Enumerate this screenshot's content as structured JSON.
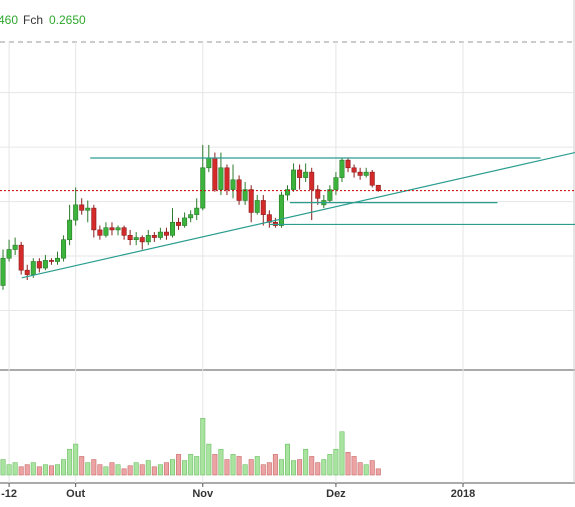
{
  "header": {
    "fragment": "460",
    "label": "Fch",
    "value": "0.2650"
  },
  "chart_data": {
    "type": "candlestick",
    "xlim": [
      -0.5,
      94.5
    ],
    "xticks": [
      {
        "value": 1,
        "label": "-12"
      },
      {
        "value": 12,
        "label": "Out"
      },
      {
        "value": 33,
        "label": "Nov"
      },
      {
        "value": 55,
        "label": "Dez"
      },
      {
        "value": 76,
        "label": "2018"
      }
    ],
    "ylim": [
      0.249,
      0.2825
    ],
    "yticks": [
      0.254,
      0.259,
      0.264,
      0.269,
      0.274
    ],
    "up_color": "#3cb43c",
    "down_color": "#d42a2a",
    "open": [
      0.2563,
      0.2588,
      0.2596,
      0.26,
      0.2577,
      0.2573,
      0.2585,
      0.2579,
      0.2586,
      0.2585,
      0.2588,
      0.2605,
      0.2623,
      0.2637,
      0.2632,
      0.2634,
      0.2614,
      0.2609,
      0.2616,
      0.2614,
      0.2616,
      0.2609,
      0.2605,
      0.2607,
      0.2603,
      0.2609,
      0.2607,
      0.2612,
      0.2609,
      0.2621,
      0.2618,
      0.2625,
      0.2628,
      0.2634,
      0.2671,
      0.268,
      0.2651,
      0.2671,
      0.2651,
      0.266,
      0.2641,
      0.2651,
      0.263,
      0.2641,
      0.2628,
      0.2621,
      0.2618,
      0.2646,
      0.2651,
      0.2669,
      0.2662,
      0.2667,
      0.2651,
      0.2637,
      0.2641,
      0.2651,
      0.2662,
      0.2678,
      0.2671,
      0.2667,
      0.2664,
      0.2667,
      0.2655
    ],
    "high": [
      0.2596,
      0.2605,
      0.2607,
      0.2603,
      0.2582,
      0.2588,
      0.2588,
      0.2591,
      0.2588,
      0.2594,
      0.2609,
      0.2637,
      0.2653,
      0.2643,
      0.2641,
      0.2637,
      0.2618,
      0.2621,
      0.2621,
      0.2618,
      0.2618,
      0.2614,
      0.2612,
      0.2609,
      0.2614,
      0.2612,
      0.2616,
      0.2616,
      0.2634,
      0.2625,
      0.263,
      0.2632,
      0.2643,
      0.2692,
      0.2692,
      0.2685,
      0.2685,
      0.2674,
      0.2674,
      0.2664,
      0.2658,
      0.2655,
      0.2646,
      0.2646,
      0.2632,
      0.2625,
      0.2649,
      0.2655,
      0.2675,
      0.2674,
      0.2675,
      0.2671,
      0.2655,
      0.2646,
      0.2655,
      0.2667,
      0.268,
      0.268,
      0.2674,
      0.2671,
      0.2671,
      0.2669,
      0.2655
    ],
    "low": [
      0.2559,
      0.2585,
      0.2591,
      0.2573,
      0.2568,
      0.257,
      0.2575,
      0.2577,
      0.2582,
      0.2582,
      0.2585,
      0.26,
      0.2618,
      0.2628,
      0.2621,
      0.2607,
      0.2605,
      0.2607,
      0.2609,
      0.2609,
      0.2605,
      0.26,
      0.26,
      0.2596,
      0.26,
      0.2603,
      0.2605,
      0.2605,
      0.2607,
      0.2614,
      0.2616,
      0.2621,
      0.2623,
      0.2632,
      0.2667,
      0.2649,
      0.2646,
      0.2646,
      0.2643,
      0.2637,
      0.2637,
      0.2621,
      0.2628,
      0.2618,
      0.2616,
      0.2616,
      0.2616,
      0.2641,
      0.2649,
      0.2651,
      0.2658,
      0.2623,
      0.2637,
      0.2634,
      0.2639,
      0.2646,
      0.2658,
      0.2667,
      0.2662,
      0.266,
      0.2662,
      0.2653,
      0.2649
    ],
    "close": [
      0.2588,
      0.2596,
      0.26,
      0.2577,
      0.2573,
      0.2585,
      0.2579,
      0.2586,
      0.2585,
      0.2588,
      0.2605,
      0.2623,
      0.2637,
      0.2632,
      0.2634,
      0.2614,
      0.2609,
      0.2616,
      0.2614,
      0.2616,
      0.2609,
      0.2605,
      0.2607,
      0.2603,
      0.2609,
      0.2607,
      0.2612,
      0.2609,
      0.2621,
      0.2618,
      0.2625,
      0.2628,
      0.2634,
      0.2671,
      0.268,
      0.2651,
      0.2671,
      0.2651,
      0.266,
      0.2641,
      0.2651,
      0.263,
      0.2641,
      0.2628,
      0.2621,
      0.2618,
      0.2646,
      0.2651,
      0.2669,
      0.2662,
      0.2667,
      0.2651,
      0.2643,
      0.2641,
      0.2651,
      0.2662,
      0.2678,
      0.2671,
      0.2667,
      0.2664,
      0.2667,
      0.2655,
      0.265
    ],
    "volume": {
      "ylim": [
        0,
        100
      ],
      "values": [
        15,
        10,
        12,
        8,
        10,
        12,
        8,
        10,
        9,
        10,
        15,
        25,
        30,
        18,
        12,
        15,
        10,
        8,
        12,
        10,
        6,
        9,
        12,
        10,
        14,
        8,
        10,
        12,
        15,
        20,
        14,
        20,
        18,
        55,
        30,
        20,
        25,
        15,
        20,
        18,
        10,
        15,
        18,
        10,
        12,
        20,
        15,
        30,
        14,
        15,
        25,
        18,
        12,
        15,
        20,
        25,
        42,
        22,
        18,
        12,
        10,
        14,
        6
      ]
    },
    "trend_color": "#2a9d8f",
    "last_line_color": "#cc0000",
    "trend_lines": [
      {
        "x": [
          14.4,
          88.8
        ],
        "y": [
          0.268,
          0.268
        ]
      },
      {
        "x": [
          3.1,
          94.5
        ],
        "y": [
          0.257,
          0.2685
        ]
      },
      {
        "x": [
          47.4,
          81.7
        ],
        "y": [
          0.2639,
          0.2639
        ]
      },
      {
        "x": [
          44.1,
          94.5
        ],
        "y": [
          0.2619,
          0.2619
        ]
      }
    ]
  }
}
